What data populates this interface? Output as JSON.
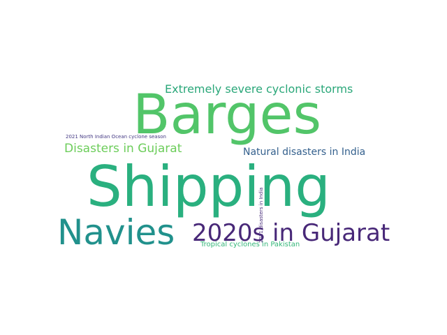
{
  "words": [
    {
      "text": "Barges",
      "color": "#52c569"
    },
    {
      "text": "Shipping",
      "color": "#2ab07f"
    },
    {
      "text": "Navies",
      "color": "#21918c"
    },
    {
      "text": "2020s in Gujarat",
      "color": "#482878"
    },
    {
      "text": "Extremely severe cyclonic storms",
      "color": "#2aa779"
    },
    {
      "text": "Disasters in Gujarat",
      "color": "#6ccd5a"
    },
    {
      "text": "Natural disasters in India",
      "color": "#34608d"
    },
    {
      "text": "2021 North Indian Ocean cyclone season",
      "color": "#443983"
    },
    {
      "text": "Tropical cyclones in Pakistan",
      "color": "#35b779"
    },
    {
      "text": "2021 disasters in India",
      "color": "#472c7a"
    }
  ]
}
